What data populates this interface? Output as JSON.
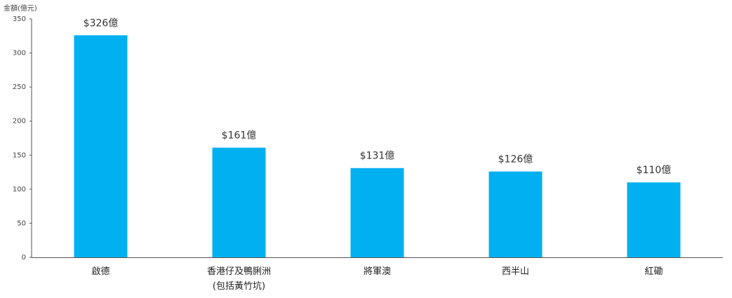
{
  "chart_data": {
    "type": "bar",
    "y_label": "金額(億元)",
    "categories": [
      "啟德",
      "香港仔及鴨脷洲\n(包括黃竹坑)",
      "將軍澳",
      "西半山",
      "紅磡"
    ],
    "values": [
      326,
      161,
      131,
      126,
      110
    ],
    "value_labels": [
      "$326億",
      "$161億",
      "$131億",
      "$126億",
      "$110億"
    ],
    "color": "#00b0f0",
    "ylim": [
      0,
      350
    ],
    "yticks": [
      0,
      50,
      100,
      150,
      200,
      250,
      300,
      350
    ],
    "grid": false
  }
}
